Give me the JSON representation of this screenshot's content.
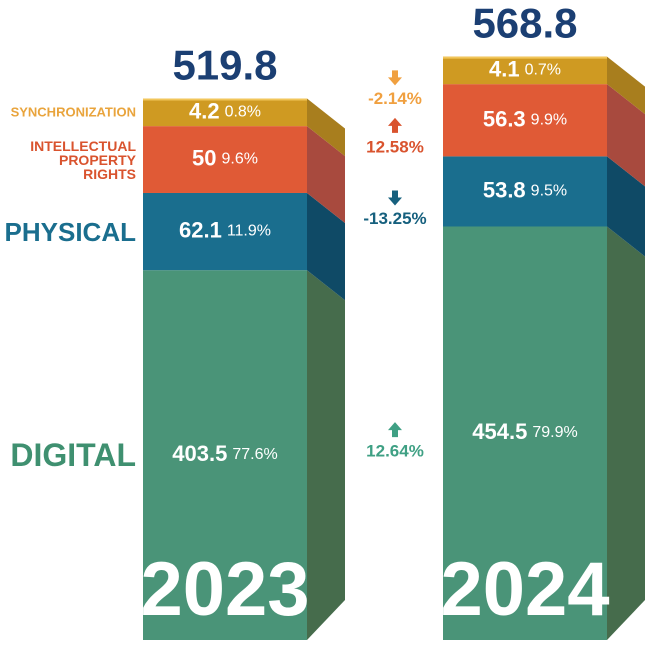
{
  "chart_data": {
    "type": "stacked-bar-3d",
    "categories": [
      "2023",
      "2024"
    ],
    "totals": [
      519.8,
      568.8
    ],
    "series": [
      {
        "name": "DIGITAL",
        "color": "#4a9478",
        "side_color": "#466c4c",
        "label_color": "#3f9070",
        "values": [
          403.5,
          454.5
        ],
        "shares": [
          77.6,
          79.9
        ],
        "share_labels": [
          "77.6%",
          "79.9%"
        ],
        "change": 12.64,
        "change_label": "12.64%",
        "change_color": "#3fa084"
      },
      {
        "name": "PHYSICAL",
        "color": "#1a6e8e",
        "side_color": "#0f4a66",
        "label_color": "#1a6e8e",
        "values": [
          62.1,
          53.8
        ],
        "shares": [
          11.9,
          9.5
        ],
        "share_labels": [
          "11.9%",
          "9.5%"
        ],
        "change": -13.25,
        "change_label": "-13.25%",
        "change_color": "#16607e"
      },
      {
        "name": "INTELLECTUAL PROPERTY RIGHTS",
        "color": "#e05a36",
        "side_color": "#a84a3e",
        "label_color": "#d9532e",
        "values": [
          50,
          56.3
        ],
        "shares": [
          9.6,
          9.9
        ],
        "share_labels": [
          "9.6%",
          "9.9%"
        ],
        "change": 12.58,
        "change_label": "12.58%",
        "change_color": "#d9532e"
      },
      {
        "name": "SYNCHRONIZATION",
        "color": "#cf9a22",
        "side_color": "#a87e1e",
        "label_color": "#e9a43c",
        "values": [
          4.2,
          4.1
        ],
        "shares": [
          0.8,
          0.7
        ],
        "share_labels": [
          "0.8%",
          "0.7%"
        ],
        "change": -2.14,
        "change_label": "-2.14%",
        "change_color": "#f0a040"
      }
    ],
    "total_color": "#1b3f73"
  }
}
